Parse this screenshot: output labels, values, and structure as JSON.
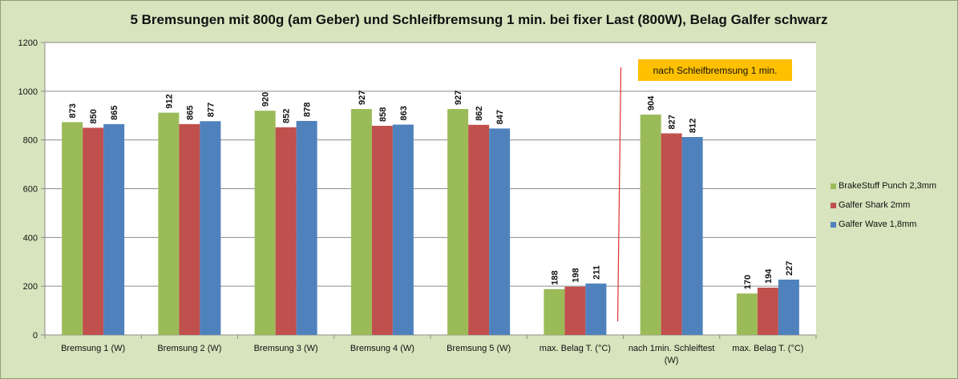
{
  "chart_data": {
    "type": "bar",
    "title": "5 Bremsungen mit 800g (am Geber) und Schleifbremsung 1 min. bei fixer Last (800W), Belag Galfer schwarz",
    "categories": [
      [
        "Bremsung 1 (W)"
      ],
      [
        "Bremsung 2 (W)"
      ],
      [
        "Bremsung 3 (W)"
      ],
      [
        "Bremsung 4 (W)"
      ],
      [
        "Bremsung 5 (W)"
      ],
      [
        "max. Belag T. (°C)"
      ],
      [
        "nach 1min. Schleiftest",
        "(W)"
      ],
      [
        "max. Belag T. (°C)"
      ]
    ],
    "series": [
      {
        "name": "BrakeStuff Punch 2,3mm",
        "color": "#9bbb59",
        "values": [
          873,
          912,
          920,
          927,
          927,
          188,
          904,
          170
        ]
      },
      {
        "name": "Galfer Shark 2mm",
        "color": "#c0504d",
        "values": [
          850,
          865,
          852,
          858,
          862,
          198,
          827,
          194
        ]
      },
      {
        "name": "Galfer Wave 1,8mm",
        "color": "#4f81bd",
        "values": [
          865,
          877,
          878,
          863,
          847,
          211,
          812,
          227
        ]
      }
    ],
    "ylim": [
      0,
      1200
    ],
    "yticks": [
      0,
      200,
      400,
      600,
      800,
      1000,
      1200
    ],
    "grid": true,
    "legend": "right",
    "annotation": {
      "text": "nach Schleifbremsung 1 min.",
      "background": "#ffc000"
    },
    "divider_color": "#e03030"
  }
}
